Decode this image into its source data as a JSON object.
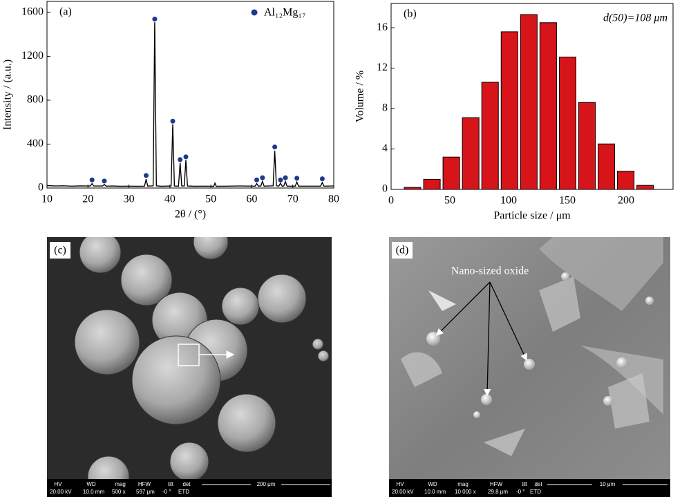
{
  "chart_data": [
    {
      "type": "line",
      "panel_label": "(a)",
      "x_label": "2θ / (°)",
      "y_label": "Intensity / (a.u.)",
      "xlim": [
        10,
        80
      ],
      "xticks": [
        10,
        20,
        30,
        40,
        50,
        60,
        70,
        80
      ],
      "ylim": [
        0,
        1700
      ],
      "yticks": [
        0,
        400,
        800,
        1200,
        1600
      ],
      "legend": "upper right",
      "x": [
        10,
        12,
        14,
        16,
        18,
        20,
        20.6,
        21,
        21.4,
        23.6,
        24,
        24.4,
        26,
        28,
        30,
        32,
        33.8,
        34.2,
        34.6,
        35.9,
        36.3,
        36.7,
        38,
        40.3,
        40.7,
        41.1,
        42.1,
        42.5,
        42.9,
        43.5,
        43.9,
        44.3,
        46,
        48,
        50.7,
        51,
        51.3,
        54,
        57,
        60.8,
        61.2,
        61.6,
        62.2,
        62.6,
        63,
        65.2,
        65.6,
        66,
        66.6,
        67,
        67.4,
        67.8,
        68.2,
        68.6,
        70.6,
        71,
        71.4,
        74,
        76.8,
        77.2,
        77.6,
        80
      ],
      "series": [
        {
          "color": "#000000",
          "values": [
            22,
            18,
            20,
            17,
            19,
            18,
            18,
            40,
            18,
            18,
            32,
            17,
            18,
            16,
            17,
            16,
            17,
            80,
            17,
            20,
            1510,
            20,
            16,
            18,
            580,
            18,
            17,
            230,
            18,
            18,
            255,
            18,
            16,
            17,
            16,
            45,
            16,
            17,
            18,
            17,
            40,
            17,
            18,
            60,
            17,
            20,
            340,
            20,
            17,
            45,
            17,
            18,
            60,
            17,
            17,
            55,
            17,
            17,
            17,
            50,
            17,
            18
          ]
        },
        {
          "name": "Al₁₂Mg₁₇",
          "type": "scatter",
          "color": "#1c3a8c",
          "x": [
            21,
            24,
            34.2,
            36.3,
            40.7,
            42.5,
            43.9,
            61.2,
            62.6,
            65.6,
            67,
            68.2,
            71,
            77.2
          ],
          "values": [
            55,
            45,
            95,
            1520,
            590,
            240,
            265,
            55,
            75,
            355,
            55,
            75,
            70,
            65
          ]
        }
      ]
    },
    {
      "type": "histogram",
      "panel_label": "(b)",
      "annotation": "d(50)=108 μm",
      "x_label": "Particle size / μm",
      "y_label": "Volume / %",
      "bins": [
        10,
        26.5,
        43,
        59.5,
        76,
        92.5,
        109,
        125.5,
        142,
        158.5,
        175,
        191.5,
        208,
        224.5
      ],
      "values": [
        0.2,
        1.0,
        3.2,
        7.1,
        10.6,
        15.6,
        17.3,
        16.5,
        13.1,
        8.6,
        4.5,
        1.8,
        0.4
      ],
      "color": "#d7141a",
      "xlim": [
        0,
        240
      ],
      "xticks": [
        0,
        50,
        100,
        150,
        200
      ],
      "ylim": [
        0,
        18.4
      ],
      "yticks": [
        0,
        4,
        8,
        12,
        16
      ]
    }
  ],
  "images": [
    {
      "label": "(c)",
      "info": [
        [
          "HV",
          "20.00 kV"
        ],
        [
          "WD",
          "10.0 mm"
        ],
        [
          "mag",
          "500 x"
        ],
        [
          "HFW",
          "597 μm"
        ],
        [
          "tilt",
          "-0 °"
        ],
        [
          "det",
          "ETD"
        ]
      ],
      "scale_bar": "200 μm"
    },
    {
      "label": "(d)",
      "annotation": "Nano-sized oxide",
      "info": [
        [
          "HV",
          "20.00 kV"
        ],
        [
          "WD",
          "10.0 mm"
        ],
        [
          "mag",
          "10 000 x"
        ],
        [
          "HFW",
          "29.8 μm"
        ],
        [
          "tilt",
          "-0 °"
        ],
        [
          "det",
          "ETD"
        ]
      ],
      "scale_bar": "10 μm"
    }
  ]
}
